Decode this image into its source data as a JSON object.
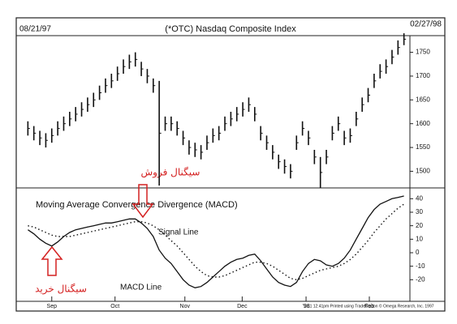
{
  "header": {
    "start_date": "08/21/97",
    "title": "(*OTC) Nasdaq Composite Index",
    "end_date": "02/27/98"
  },
  "chart_data": [
    {
      "type": "ohlc",
      "color": "#111111",
      "high": [
        1605,
        1595,
        1585,
        1580,
        1590,
        1605,
        1615,
        1625,
        1635,
        1645,
        1655,
        1665,
        1680,
        1695,
        1705,
        1720,
        1735,
        1745,
        1750,
        1730,
        1715,
        1695,
        1690,
        1615,
        1615,
        1605,
        1585,
        1565,
        1560,
        1555,
        1575,
        1590,
        1595,
        1615,
        1625,
        1635,
        1645,
        1655,
        1635,
        1595,
        1575,
        1555,
        1535,
        1525,
        1515,
        1575,
        1605,
        1585,
        1545,
        1530,
        1545,
        1595,
        1615,
        1585,
        1590,
        1625,
        1655,
        1675,
        1705,
        1725,
        1735,
        1755,
        1775,
        1790
      ],
      "low": [
        1575,
        1565,
        1555,
        1550,
        1560,
        1575,
        1585,
        1595,
        1605,
        1615,
        1625,
        1635,
        1650,
        1665,
        1675,
        1690,
        1705,
        1715,
        1720,
        1700,
        1685,
        1665,
        1470,
        1585,
        1585,
        1575,
        1555,
        1535,
        1530,
        1525,
        1545,
        1560,
        1565,
        1585,
        1595,
        1605,
        1615,
        1625,
        1605,
        1565,
        1545,
        1525,
        1505,
        1495,
        1485,
        1545,
        1575,
        1555,
        1515,
        1465,
        1515,
        1565,
        1585,
        1555,
        1560,
        1595,
        1625,
        1645,
        1675,
        1695,
        1705,
        1725,
        1745,
        1765
      ],
      "xlim": [
        -1,
        64
      ],
      "ylim": [
        1465,
        1785
      ],
      "yticks": [
        1500,
        1550,
        1600,
        1650,
        1700,
        1750
      ]
    },
    {
      "type": "line",
      "title": "Moving Average Convergence Divergence (MACD)",
      "series": [
        {
          "name": "MACD Line",
          "color": "#111111",
          "dash": false,
          "values": [
            17,
            14,
            10,
            7,
            5,
            8,
            12,
            15,
            17,
            18,
            19,
            20,
            21,
            22,
            22,
            23,
            24,
            25,
            25,
            22,
            18,
            12,
            2,
            -4,
            -8,
            -14,
            -20,
            -24,
            -26,
            -25,
            -22,
            -18,
            -14,
            -10,
            -7,
            -5,
            -4,
            -2,
            -1,
            -6,
            -12,
            -18,
            -22,
            -24,
            -25,
            -22,
            -14,
            -8,
            -5,
            -6,
            -9,
            -10,
            -8,
            -4,
            2,
            10,
            18,
            26,
            32,
            36,
            38,
            40,
            41,
            42
          ]
        },
        {
          "name": "Signal Line",
          "color": "#111111",
          "dash": true,
          "values": [
            20,
            19,
            17,
            15,
            13,
            12,
            12,
            12,
            13,
            14,
            15,
            16,
            17,
            18,
            19,
            20,
            21,
            22,
            23,
            23,
            22,
            20,
            17,
            13,
            9,
            5,
            0,
            -5,
            -10,
            -14,
            -17,
            -18,
            -18,
            -17,
            -15,
            -13,
            -11,
            -9,
            -7,
            -7,
            -8,
            -10,
            -13,
            -16,
            -19,
            -20,
            -19,
            -17,
            -15,
            -13,
            -12,
            -11,
            -10,
            -8,
            -5,
            -1,
            4,
            9,
            15,
            20,
            25,
            29,
            33,
            36
          ]
        }
      ],
      "xlim": [
        -1,
        64
      ],
      "ylim": [
        -36,
        48
      ],
      "yticks": [
        40,
        30,
        20,
        10,
        0,
        -10,
        -20
      ],
      "xticks": [
        {
          "value": 4,
          "label": "Sep"
        },
        {
          "value": 14.6,
          "label": "Oct"
        },
        {
          "value": 26.3,
          "label": "Nov"
        },
        {
          "value": 35.9,
          "label": "Dec"
        },
        {
          "value": 46.6,
          "label": "'98"
        },
        {
          "value": 57.2,
          "label": "Feb"
        }
      ]
    }
  ],
  "annotations": {
    "sell": "سیگنال فروش",
    "buy": "سیگنال خرید"
  },
  "footer": "3/11 12:41pm Printed using TradeStation © Omega Research, Inc. 1997"
}
